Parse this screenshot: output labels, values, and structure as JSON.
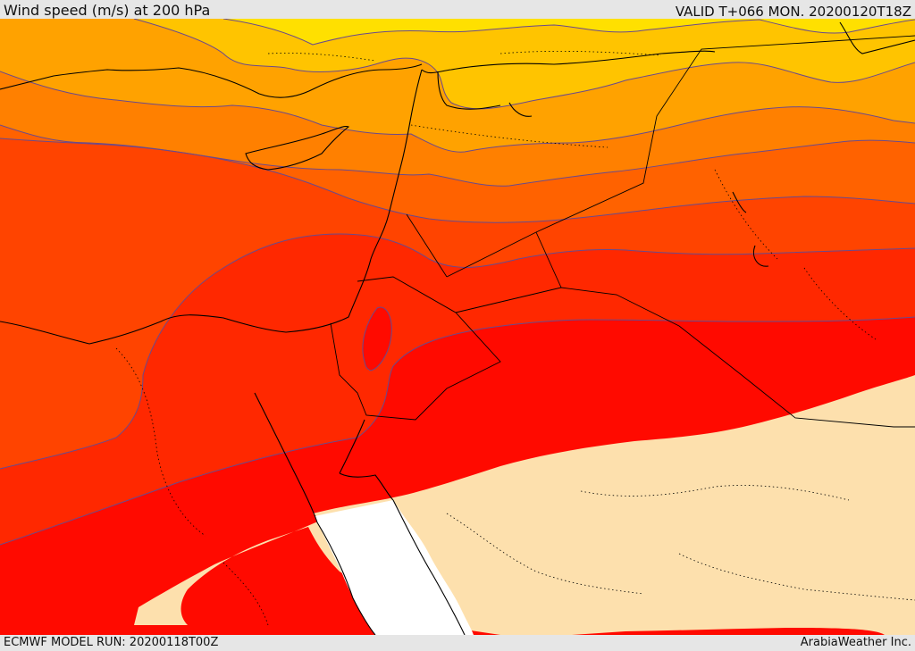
{
  "header": {
    "title": "Wind speed (m/s) at 200 hPa",
    "valid": "VALID T+066 MON. 20200120T18Z"
  },
  "footer": {
    "model_run": "ECMWF MODEL RUN: 20200118T00Z",
    "credit": "ArabiaWeather Inc."
  },
  "map": {
    "field": "wind speed at 200 hPa",
    "colors": {
      "band_lowest": "#ffe000",
      "band_1": "#ffc400",
      "band_2": "#ffa200",
      "band_3": "#ff8000",
      "band_4": "#ff6200",
      "band_5": "#ff4400",
      "band_6": "#ff2800",
      "band_7": "#ff0a00",
      "land_below_threshold": "#fde0ad",
      "sea_below_threshold": "#ffffff",
      "contour_line": "#6a4a8c",
      "coastline": "#000000"
    }
  }
}
